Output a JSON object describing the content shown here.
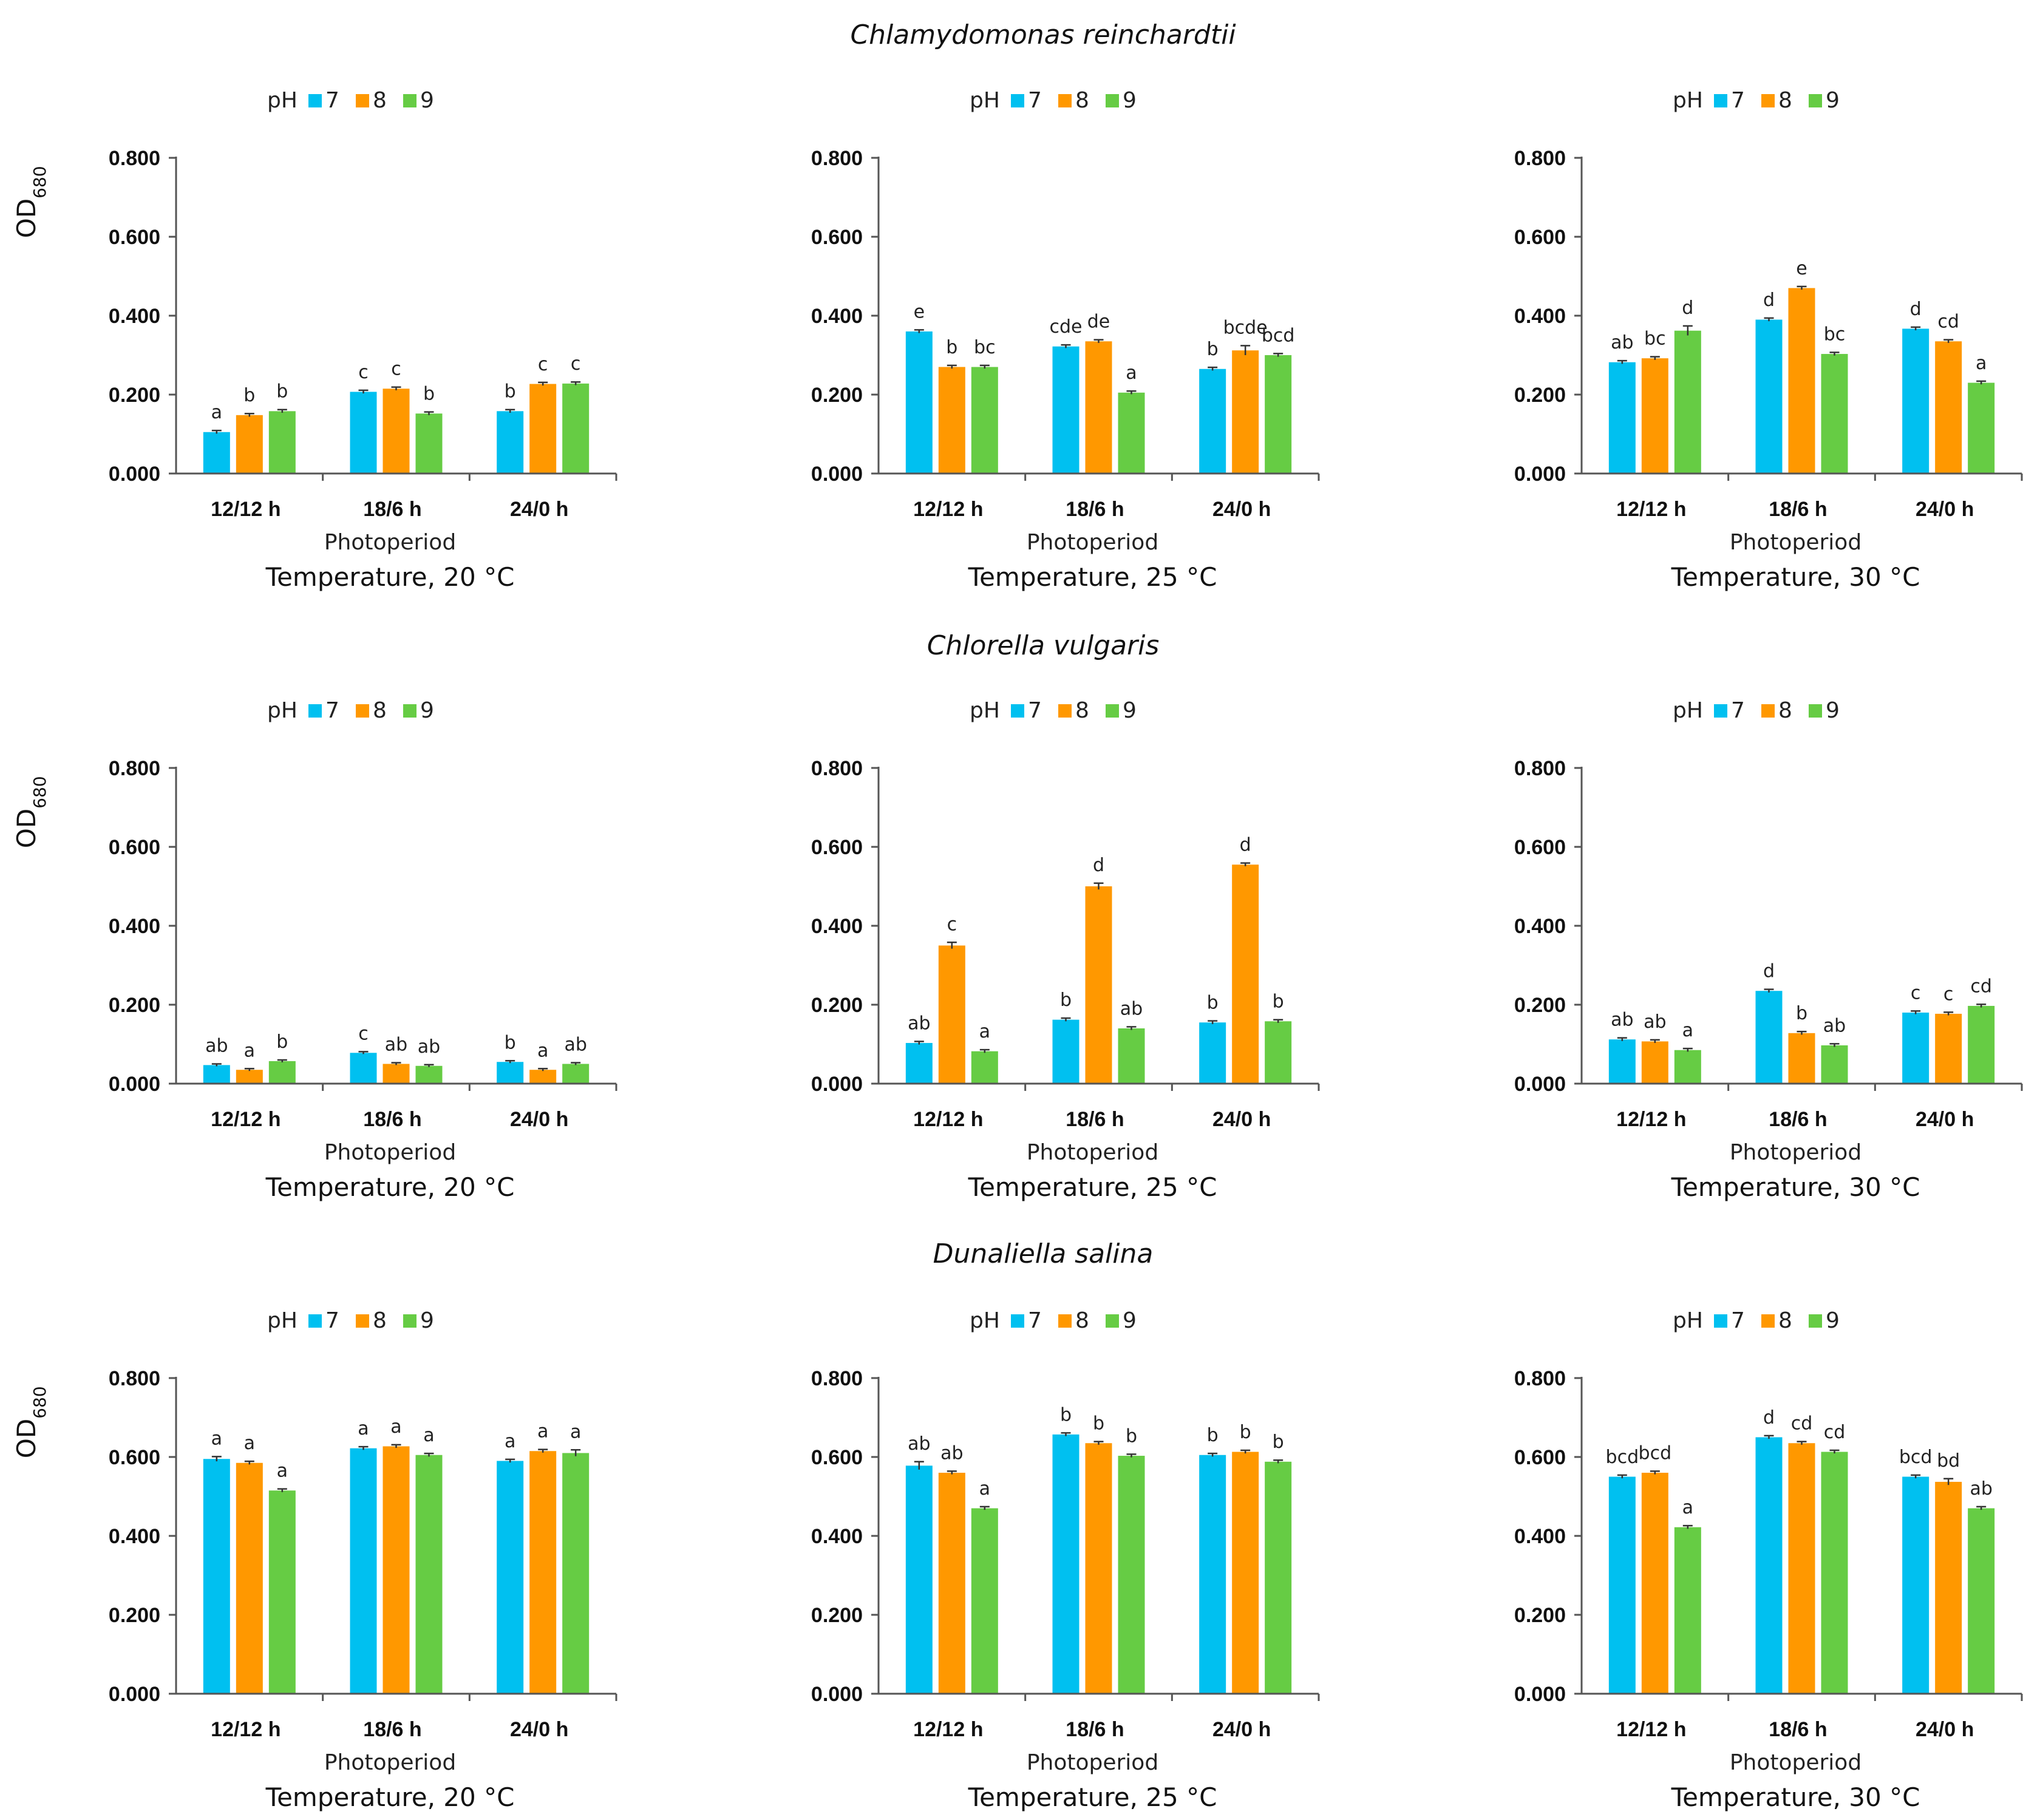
{
  "species_titles": [
    "Chlamydomonas reinchardtii",
    "Chlorella vulgaris",
    "Dunaliella salina"
  ],
  "colors": {
    "pH7": "#00c0f0",
    "pH8": "#ff9800",
    "pH9": "#66cc44"
  },
  "legend": {
    "prefix": "pH",
    "entries": [
      "7",
      "8",
      "9"
    ]
  },
  "y_axis": {
    "label_main": "OD",
    "label_sub": "680",
    "ticks": [
      "0.000",
      "0.200",
      "0.400",
      "0.600",
      "0.800"
    ],
    "ylim": [
      0,
      0.8
    ]
  },
  "x_axis": {
    "label": "Photoperiod",
    "categories": [
      "12/12 h",
      "18/6 h",
      "24/0 h"
    ]
  },
  "chart_data": [
    {
      "type": "bar",
      "species": "Chlamydomonas reinchardtii",
      "temperature": "Temperature, 20 °C",
      "categories": [
        "12/12 h",
        "18/6 h",
        "24/0 h"
      ],
      "series": [
        {
          "name": "7",
          "values": [
            0.105,
            0.207,
            0.158
          ],
          "errors": [
            0.004,
            0.004,
            0.004
          ],
          "labels": [
            "a",
            "c",
            "b"
          ]
        },
        {
          "name": "8",
          "values": [
            0.148,
            0.215,
            0.227
          ],
          "errors": [
            0.004,
            0.004,
            0.004
          ],
          "labels": [
            "b",
            "c",
            "c"
          ]
        },
        {
          "name": "9",
          "values": [
            0.158,
            0.152,
            0.228
          ],
          "errors": [
            0.004,
            0.004,
            0.004
          ],
          "labels": [
            "b",
            "b",
            "c"
          ]
        }
      ],
      "ylim": [
        0,
        0.8
      ]
    },
    {
      "type": "bar",
      "species": "Chlamydomonas reinchardtii",
      "temperature": "Temperature, 25 °C",
      "categories": [
        "12/12 h",
        "18/6 h",
        "24/0 h"
      ],
      "series": [
        {
          "name": "7",
          "values": [
            0.36,
            0.322,
            0.265
          ],
          "errors": [
            0.004,
            0.004,
            0.004
          ],
          "labels": [
            "e",
            "cde",
            "b"
          ]
        },
        {
          "name": "8",
          "values": [
            0.27,
            0.335,
            0.312
          ],
          "errors": [
            0.004,
            0.004,
            0.012
          ],
          "labels": [
            "b",
            "de",
            "bcde"
          ]
        },
        {
          "name": "9",
          "values": [
            0.27,
            0.205,
            0.3
          ],
          "errors": [
            0.004,
            0.004,
            0.004
          ],
          "labels": [
            "bc",
            "a",
            "bcd"
          ]
        }
      ],
      "ylim": [
        0,
        0.8
      ]
    },
    {
      "type": "bar",
      "species": "Chlamydomonas reinchardtii",
      "temperature": "Temperature, 30 °C",
      "categories": [
        "12/12 h",
        "18/6 h",
        "24/0 h"
      ],
      "series": [
        {
          "name": "7",
          "values": [
            0.282,
            0.39,
            0.367
          ],
          "errors": [
            0.004,
            0.004,
            0.004
          ],
          "labels": [
            "ab",
            "d",
            "d"
          ]
        },
        {
          "name": "8",
          "values": [
            0.292,
            0.47,
            0.335
          ],
          "errors": [
            0.004,
            0.004,
            0.004
          ],
          "labels": [
            "bc",
            "e",
            "cd"
          ]
        },
        {
          "name": "9",
          "values": [
            0.362,
            0.303,
            0.23
          ],
          "errors": [
            0.012,
            0.004,
            0.004
          ],
          "labels": [
            "d",
            "bc",
            "a"
          ]
        }
      ],
      "ylim": [
        0,
        0.8
      ]
    },
    {
      "type": "bar",
      "species": "Chlorella vulgaris",
      "temperature": "Temperature, 20 °C",
      "categories": [
        "12/12 h",
        "18/6 h",
        "24/0 h"
      ],
      "series": [
        {
          "name": "7",
          "values": [
            0.047,
            0.078,
            0.055
          ],
          "errors": [
            0.003,
            0.003,
            0.003
          ],
          "labels": [
            "ab",
            "c",
            "b"
          ]
        },
        {
          "name": "8",
          "values": [
            0.035,
            0.05,
            0.035
          ],
          "errors": [
            0.003,
            0.003,
            0.003
          ],
          "labels": [
            "a",
            "ab",
            "a"
          ]
        },
        {
          "name": "9",
          "values": [
            0.057,
            0.045,
            0.05
          ],
          "errors": [
            0.003,
            0.003,
            0.003
          ],
          "labels": [
            "b",
            "ab",
            "ab"
          ]
        }
      ],
      "ylim": [
        0,
        0.8
      ]
    },
    {
      "type": "bar",
      "species": "Chlorella vulgaris",
      "temperature": "Temperature, 25 °C",
      "categories": [
        "12/12 h",
        "18/6 h",
        "24/0 h"
      ],
      "series": [
        {
          "name": "7",
          "values": [
            0.103,
            0.162,
            0.155
          ],
          "errors": [
            0.004,
            0.004,
            0.004
          ],
          "labels": [
            "ab",
            "b",
            "b"
          ]
        },
        {
          "name": "8",
          "values": [
            0.35,
            0.5,
            0.555
          ],
          "errors": [
            0.008,
            0.008,
            0.004
          ],
          "labels": [
            "c",
            "d",
            "d"
          ]
        },
        {
          "name": "9",
          "values": [
            0.082,
            0.14,
            0.158
          ],
          "errors": [
            0.004,
            0.004,
            0.004
          ],
          "labels": [
            "a",
            "ab",
            "b"
          ]
        }
      ],
      "ylim": [
        0,
        0.8
      ]
    },
    {
      "type": "bar",
      "species": "Chlorella vulgaris",
      "temperature": "Temperature, 30 °C",
      "categories": [
        "12/12 h",
        "18/6 h",
        "24/0 h"
      ],
      "series": [
        {
          "name": "7",
          "values": [
            0.112,
            0.235,
            0.18
          ],
          "errors": [
            0.004,
            0.004,
            0.004
          ],
          "labels": [
            "ab",
            "d",
            "c"
          ]
        },
        {
          "name": "8",
          "values": [
            0.107,
            0.128,
            0.177
          ],
          "errors": [
            0.004,
            0.004,
            0.004
          ],
          "labels": [
            "ab",
            "b",
            "c"
          ]
        },
        {
          "name": "9",
          "values": [
            0.085,
            0.097,
            0.197
          ],
          "errors": [
            0.004,
            0.004,
            0.004
          ],
          "labels": [
            "a",
            "ab",
            "cd"
          ]
        }
      ],
      "ylim": [
        0,
        0.8
      ]
    },
    {
      "type": "bar",
      "species": "Dunaliella salina",
      "temperature": "Temperature, 20 °C",
      "categories": [
        "12/12 h",
        "18/6 h",
        "24/0 h"
      ],
      "series": [
        {
          "name": "7",
          "values": [
            0.595,
            0.622,
            0.59
          ],
          "errors": [
            0.006,
            0.004,
            0.004
          ],
          "labels": [
            "a",
            "a",
            "a"
          ]
        },
        {
          "name": "8",
          "values": [
            0.585,
            0.627,
            0.615
          ],
          "errors": [
            0.004,
            0.004,
            0.004
          ],
          "labels": [
            "a",
            "a",
            "a"
          ]
        },
        {
          "name": "9",
          "values": [
            0.515,
            0.605,
            0.61
          ],
          "errors": [
            0.004,
            0.004,
            0.008
          ],
          "labels": [
            "a",
            "a",
            "a"
          ]
        }
      ],
      "ylim": [
        0,
        0.8
      ]
    },
    {
      "type": "bar",
      "species": "Dunaliella salina",
      "temperature": "Temperature, 25 °C",
      "categories": [
        "12/12 h",
        "18/6 h",
        "24/0 h"
      ],
      "series": [
        {
          "name": "7",
          "values": [
            0.578,
            0.657,
            0.605
          ],
          "errors": [
            0.01,
            0.004,
            0.004
          ],
          "labels": [
            "ab",
            "b",
            "b"
          ]
        },
        {
          "name": "8",
          "values": [
            0.56,
            0.635,
            0.613
          ],
          "errors": [
            0.004,
            0.004,
            0.004
          ],
          "labels": [
            "ab",
            "b",
            "b"
          ]
        },
        {
          "name": "9",
          "values": [
            0.47,
            0.603,
            0.588
          ],
          "errors": [
            0.004,
            0.004,
            0.004
          ],
          "labels": [
            "a",
            "b",
            "b"
          ]
        }
      ],
      "ylim": [
        0,
        0.8
      ]
    },
    {
      "type": "bar",
      "species": "Dunaliella salina",
      "temperature": "Temperature, 30 °C",
      "categories": [
        "12/12 h",
        "18/6 h",
        "24/0 h"
      ],
      "series": [
        {
          "name": "7",
          "values": [
            0.55,
            0.65,
            0.55
          ],
          "errors": [
            0.004,
            0.004,
            0.004
          ],
          "labels": [
            "bcd",
            "d",
            "bcd"
          ]
        },
        {
          "name": "8",
          "values": [
            0.56,
            0.635,
            0.537
          ],
          "errors": [
            0.004,
            0.004,
            0.008
          ],
          "labels": [
            "bcd",
            "cd",
            "bd"
          ]
        },
        {
          "name": "9",
          "values": [
            0.422,
            0.613,
            0.47
          ],
          "errors": [
            0.004,
            0.004,
            0.004
          ],
          "labels": [
            "a",
            "cd",
            "ab"
          ]
        }
      ],
      "ylim": [
        0,
        0.8
      ]
    }
  ]
}
